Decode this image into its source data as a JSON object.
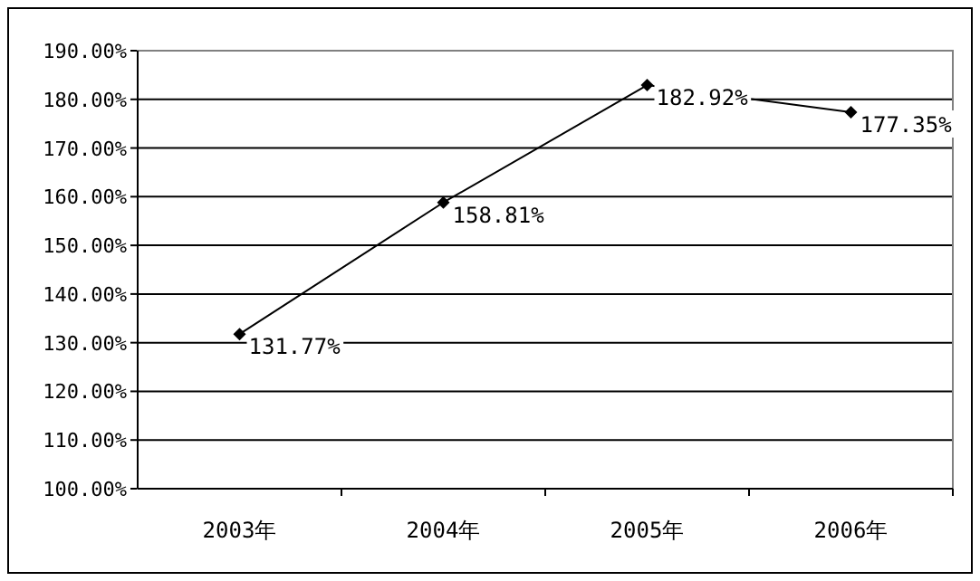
{
  "chart_data": {
    "type": "line",
    "categories": [
      "2003年",
      "2004年",
      "2005年",
      "2006年"
    ],
    "series": [
      {
        "color": "#000000",
        "values": [
          131.77,
          158.81,
          182.92,
          177.35
        ],
        "value_labels": [
          "131.77%",
          "158.81%",
          "182.92%",
          "177.35%"
        ]
      }
    ],
    "ylim": [
      100,
      190
    ],
    "yticks": [
      {
        "value": 100,
        "label": "100.00%"
      },
      {
        "value": 110,
        "label": "110.00%"
      },
      {
        "value": 120,
        "label": "120.00%"
      },
      {
        "value": 130,
        "label": "130.00%"
      },
      {
        "value": 140,
        "label": "140.00%"
      },
      {
        "value": 150,
        "label": "150.00%"
      },
      {
        "value": 160,
        "label": "160.00%"
      },
      {
        "value": 170,
        "label": "170.00%"
      },
      {
        "value": 180,
        "label": "180.00%"
      },
      {
        "value": 190,
        "label": "190.00%"
      }
    ],
    "grid": "y",
    "marker": "diamond",
    "line_style": "solid"
  }
}
